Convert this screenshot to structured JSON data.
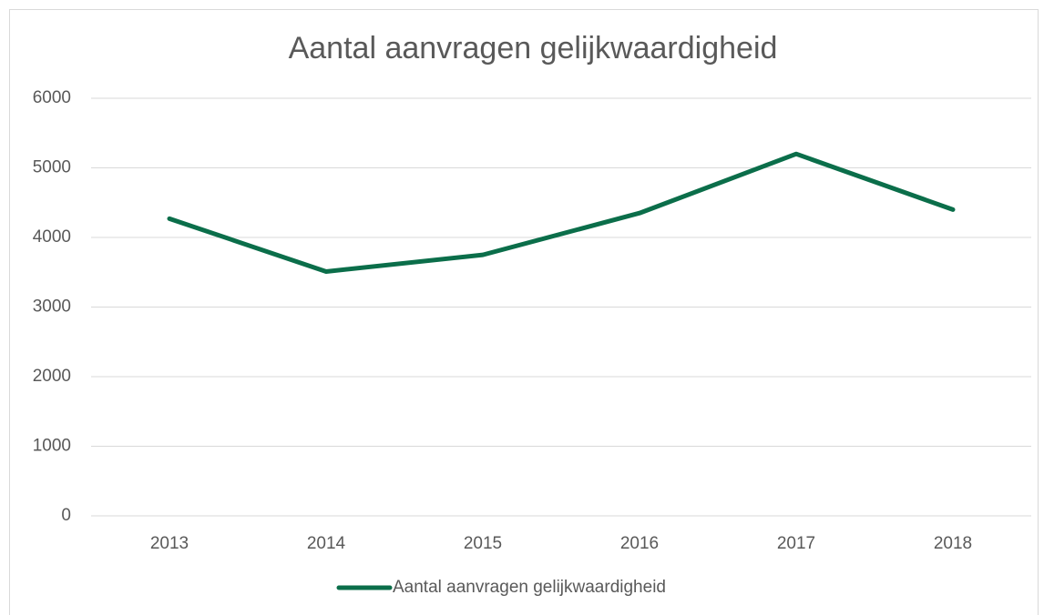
{
  "chart_data": {
    "type": "line",
    "title": "Aantal aanvragen gelijkwaardigheid",
    "categories": [
      "2013",
      "2014",
      "2015",
      "2016",
      "2017",
      "2018"
    ],
    "series": [
      {
        "name": "Aantal aanvragen gelijkwaardigheid",
        "color": "#0b6e4a",
        "values": [
          4270,
          3510,
          3750,
          4350,
          5200,
          4400
        ]
      }
    ],
    "ylim": [
      0,
      6000
    ],
    "yticks": [
      0,
      1000,
      2000,
      3000,
      4000,
      5000,
      6000
    ],
    "grid": true,
    "legend": "bottom"
  }
}
